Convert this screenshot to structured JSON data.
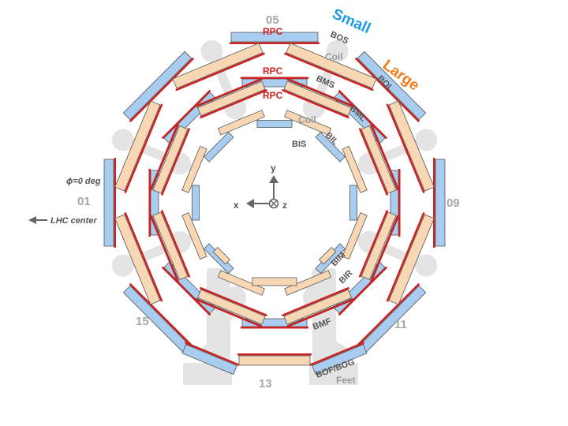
{
  "labels": {
    "sector_01": "01",
    "sector_05": "05",
    "sector_09": "09",
    "sector_11": "11",
    "sector_13": "13",
    "sector_15": "15",
    "small": "Small",
    "large": "Large",
    "phi": "ϕ=0 deg",
    "lhc_center": "LHC center",
    "axis_x": "x",
    "axis_y": "y",
    "axis_z": "z",
    "coil_outer": "Coil",
    "coil_inner": "Coil",
    "feet": "Feet",
    "rpc_top1": "RPC",
    "rpc_top2": "RPC",
    "rpc_top3": "RPC",
    "bos": "BOS",
    "bms": "BMS",
    "bol": "BOL",
    "bml": "BML",
    "bil": "BIL",
    "bis": "BIS",
    "bim": "BIM",
    "bir": "BIR",
    "bmf": "BMF",
    "bofbog": "BOF/BOG"
  },
  "colors": {
    "small_chamber": "#a9cdf0",
    "large_chamber": "#f8d7b4",
    "rpc": "#cc2222",
    "support": "#e4e4e4",
    "sector_number": "#a6a6a6",
    "small_label": "#1e9be3",
    "large_label": "#f07d1a"
  }
}
